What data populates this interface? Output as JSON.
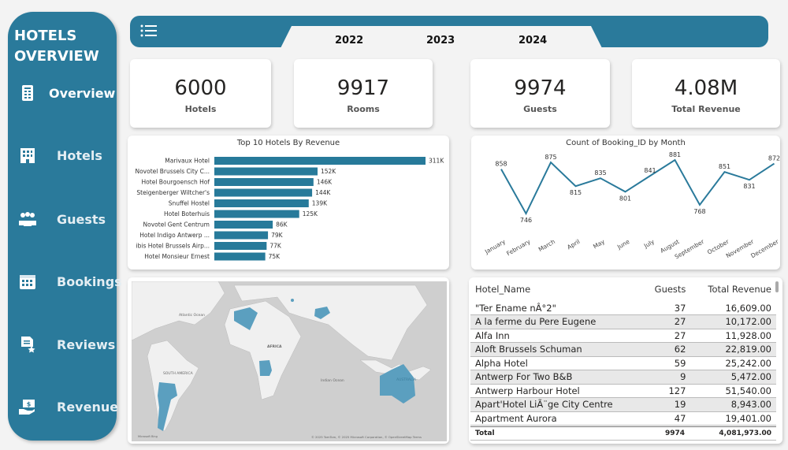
{
  "sidebar": {
    "title_line1": "HOTELS",
    "title_line2": "OVERVIEW",
    "items": [
      {
        "label": "Overview",
        "icon": "document-icon"
      },
      {
        "label": "Hotels",
        "icon": "building-icon"
      },
      {
        "label": "Guests",
        "icon": "people-icon"
      },
      {
        "label": "Bookings",
        "icon": "calendar-icon"
      },
      {
        "label": "Reviews",
        "icon": "review-icon"
      },
      {
        "label": "Revenue",
        "icon": "money-hand-icon"
      }
    ]
  },
  "header": {
    "menu_icon": "list-icon",
    "years": [
      "2022",
      "2023",
      "2024"
    ]
  },
  "kpis": [
    {
      "value": "6000",
      "label": "Hotels"
    },
    {
      "value": "9917",
      "label": "Rooms"
    },
    {
      "value": "9974",
      "label": "Guests"
    },
    {
      "value": "4.08M",
      "label": "Total Revenue"
    }
  ],
  "colors": {
    "accent": "#2a7a9b",
    "background": "#f3f3f3"
  },
  "chart_data": [
    {
      "type": "bar",
      "orientation": "horizontal",
      "title": "Top 10 Hotels By Revenue",
      "categories": [
        "Marivaux Hotel",
        "Novotel Brussels City C...",
        "Hotel Bourgoensch Hof",
        "Steigenberger Wiltcher's",
        "Snuffel Hostel",
        "Hotel Boterhuis",
        "Novotel Gent Centrum",
        "Hotel Indigo Antwerp ...",
        "ibis Hotel Brussels Airp...",
        "Hotel Monsieur Ernest"
      ],
      "values": [
        311,
        152,
        146,
        144,
        139,
        125,
        86,
        79,
        77,
        75
      ],
      "data_labels": [
        "311K",
        "152K",
        "146K",
        "144K",
        "139K",
        "125K",
        "86K",
        "79K",
        "77K",
        "75K"
      ],
      "unit": "K"
    },
    {
      "type": "line",
      "title": "Count of Booking_ID by Month",
      "categories": [
        "January",
        "February",
        "March",
        "April",
        "May",
        "June",
        "July",
        "August",
        "September",
        "October",
        "November",
        "December"
      ],
      "values": [
        858,
        746,
        875,
        815,
        835,
        801,
        841,
        881,
        768,
        851,
        831,
        872
      ]
    }
  ],
  "map": {
    "labels": [
      "Atlantic Ocean",
      "AFRICA",
      "SOUTH AMERICA",
      "Indian Ocean",
      "AUSTRALIA"
    ],
    "attribution": "© 2025 TomTom, © 2025 Microsoft Corporation, © OpenStreetMap  Terms",
    "logo": "Microsoft Bing",
    "highlighted": [
      "Algeria",
      "Afghanistan",
      "Angola",
      "Argentina",
      "Australia",
      "Armenia"
    ]
  },
  "table": {
    "columns": [
      "Hotel_Name",
      "Guests",
      "Total Revenue"
    ],
    "rows": [
      [
        "\"Ter Ename nÂ°2\"",
        "37",
        "16,609.00"
      ],
      [
        "A la ferme du Pere Eugene",
        "27",
        "10,172.00"
      ],
      [
        "Alfa Inn",
        "27",
        "11,928.00"
      ],
      [
        "Aloft Brussels Schuman",
        "62",
        "22,819.00"
      ],
      [
        "Alpha Hotel",
        "59",
        "25,242.00"
      ],
      [
        "Antwerp For Two B&B",
        "9",
        "5,472.00"
      ],
      [
        "Antwerp Harbour Hotel",
        "127",
        "51,540.00"
      ],
      [
        "Apart'Hotel LiÃ¨ge City Centre",
        "19",
        "8,943.00"
      ],
      [
        "Apartment Aurora",
        "47",
        "19,401.00"
      ]
    ],
    "total": {
      "label": "Total",
      "guests": "9974",
      "revenue": "4,081,973.00"
    }
  }
}
